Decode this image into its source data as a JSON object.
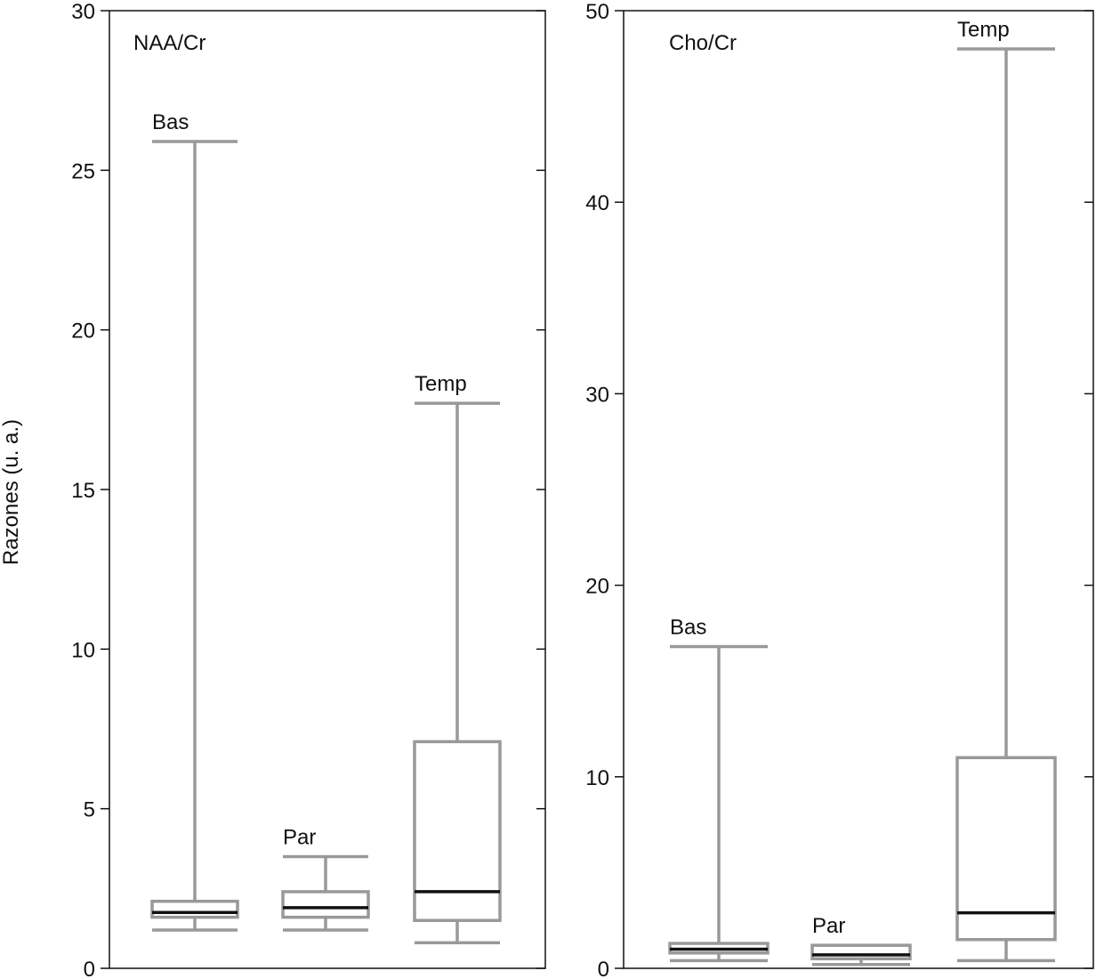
{
  "chart_data": {
    "ylabel": "Razones (u. a.)",
    "stroke_colors": {
      "box": "#999999",
      "median": "#111111",
      "frame": "#111111"
    },
    "panels": [
      {
        "type": "box",
        "title": "NAA/Cr",
        "ylim": [
          0,
          30
        ],
        "yticks": [
          0,
          5,
          10,
          15,
          20,
          25,
          30
        ],
        "groups": [
          {
            "label": "Bas",
            "min": 1.2,
            "q1": 1.6,
            "median": 1.75,
            "q3": 2.1,
            "max": 25.9
          },
          {
            "label": "Par",
            "min": 1.2,
            "q1": 1.6,
            "median": 1.9,
            "q3": 2.4,
            "max": 3.5
          },
          {
            "label": "Temp",
            "min": 0.8,
            "q1": 1.5,
            "median": 2.4,
            "q3": 7.1,
            "max": 17.7
          }
        ]
      },
      {
        "type": "box",
        "title": "Cho/Cr",
        "ylim": [
          0,
          50
        ],
        "yticks": [
          0,
          10,
          20,
          30,
          40,
          50
        ],
        "groups": [
          {
            "label": "Bas",
            "min": 0.4,
            "q1": 0.8,
            "median": 1.0,
            "q3": 1.3,
            "max": 16.8
          },
          {
            "label": "Par",
            "min": 0.2,
            "q1": 0.5,
            "median": 0.7,
            "q3": 1.2,
            "max": 1.2
          },
          {
            "label": "Temp",
            "min": 0.4,
            "q1": 1.5,
            "median": 2.9,
            "q3": 11.0,
            "max": 48.0
          }
        ]
      }
    ]
  }
}
